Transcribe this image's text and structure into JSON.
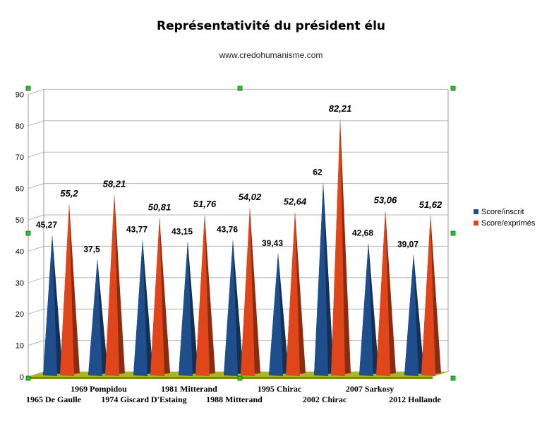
{
  "chart_data": {
    "type": "bar",
    "title": "Représentativité du président élu",
    "subtitle": "www.credohumanisme.com",
    "categories": [
      "1965 De Gaulle",
      "1969 Pompidou",
      "1974 Giscard D'Estaing",
      "1981 Mitterand",
      "1988 Mitterand",
      "1995 Chirac",
      "2002 Chirac",
      "2007 Sarkosy",
      "2012 Hollande"
    ],
    "series": [
      {
        "name": "Score/inscrit",
        "color": "#1f4e8c",
        "values": [
          45.27,
          37.5,
          43.77,
          43.15,
          43.76,
          39.43,
          62,
          42.68,
          39.07
        ],
        "labels": [
          "45,27",
          "37,5",
          "43,77",
          "43,15",
          "43,76",
          "39,43",
          "62",
          "42,68",
          "39,07"
        ]
      },
      {
        "name": "Score/exprimés",
        "color": "#e0461a",
        "values": [
          55.2,
          58.21,
          50.81,
          51.76,
          54.02,
          52.64,
          82.21,
          53.06,
          51.62
        ],
        "labels": [
          "55,2",
          "58,21",
          "50,81",
          "51,76",
          "54,02",
          "52,64",
          "82,21",
          "53,06",
          "51,62"
        ]
      }
    ],
    "ylim": [
      0,
      90
    ],
    "yticks": [
      "0",
      "10",
      "20",
      "30",
      "40",
      "50",
      "60",
      "70",
      "80",
      "90"
    ],
    "grid": true,
    "legend": "right"
  }
}
